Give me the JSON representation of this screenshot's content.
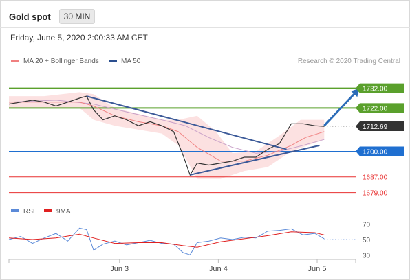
{
  "header": {
    "title": "Gold spot",
    "timeframe": "30 MIN",
    "timestamp": "Friday, June 5, 2020 2:00:33 AM CET"
  },
  "chart_data": [
    {
      "type": "line",
      "name": "price",
      "legend": [
        {
          "name": "MA 20 + Bollinger Bands",
          "color": "#f08080"
        },
        {
          "name": "MA 50",
          "color": "#2b4f8f"
        }
      ],
      "credit": "Research © 2020 Trading Central",
      "x_ticks": [
        "Jun 3",
        "Jun 4",
        "Jun 5"
      ],
      "ylim": [
        1674,
        1742
      ],
      "levels": [
        {
          "value": 1732.0,
          "label": "1732.00",
          "color": "#5aa02c",
          "kind": "resistance"
        },
        {
          "value": 1722.0,
          "label": "1722.00",
          "color": "#5aa02c",
          "kind": "resistance"
        },
        {
          "value": 1712.69,
          "label": "1712.69",
          "color": "#333333",
          "kind": "last"
        },
        {
          "value": 1700.0,
          "label": "1700.00",
          "color": "#1f6fd0",
          "kind": "support"
        },
        {
          "value": 1687.0,
          "label": "1687.00",
          "color": "#e83030",
          "kind": "support"
        },
        {
          "value": 1679.0,
          "label": "1679.00",
          "color": "#e83030",
          "kind": "support"
        }
      ],
      "price": [
        {
          "t": 0,
          "v": 1724
        },
        {
          "t": 5,
          "v": 1725
        },
        {
          "t": 10,
          "v": 1726
        },
        {
          "t": 15,
          "v": 1725
        },
        {
          "t": 20,
          "v": 1723
        },
        {
          "t": 25,
          "v": 1725
        },
        {
          "t": 30,
          "v": 1727
        },
        {
          "t": 33,
          "v": 1728
        },
        {
          "t": 36,
          "v": 1721
        },
        {
          "t": 40,
          "v": 1716
        },
        {
          "t": 45,
          "v": 1718
        },
        {
          "t": 50,
          "v": 1716
        },
        {
          "t": 55,
          "v": 1713
        },
        {
          "t": 60,
          "v": 1715
        },
        {
          "t": 65,
          "v": 1713
        },
        {
          "t": 70,
          "v": 1710
        },
        {
          "t": 74,
          "v": 1698
        },
        {
          "t": 77,
          "v": 1688
        },
        {
          "t": 80,
          "v": 1694
        },
        {
          "t": 85,
          "v": 1693
        },
        {
          "t": 90,
          "v": 1694
        },
        {
          "t": 95,
          "v": 1695
        },
        {
          "t": 100,
          "v": 1697
        },
        {
          "t": 105,
          "v": 1697
        },
        {
          "t": 110,
          "v": 1701
        },
        {
          "t": 115,
          "v": 1704
        },
        {
          "t": 120,
          "v": 1714
        },
        {
          "t": 125,
          "v": 1714
        },
        {
          "t": 130,
          "v": 1713
        },
        {
          "t": 134,
          "v": 1712.69
        }
      ],
      "ma20": [
        {
          "t": 0,
          "v": 1725
        },
        {
          "t": 10,
          "v": 1725
        },
        {
          "t": 20,
          "v": 1725
        },
        {
          "t": 30,
          "v": 1725
        },
        {
          "t": 36,
          "v": 1723
        },
        {
          "t": 45,
          "v": 1718
        },
        {
          "t": 55,
          "v": 1715
        },
        {
          "t": 65,
          "v": 1713
        },
        {
          "t": 72,
          "v": 1710
        },
        {
          "t": 80,
          "v": 1702
        },
        {
          "t": 90,
          "v": 1695
        },
        {
          "t": 100,
          "v": 1695
        },
        {
          "t": 110,
          "v": 1698
        },
        {
          "t": 120,
          "v": 1703
        },
        {
          "t": 126,
          "v": 1707
        },
        {
          "t": 134,
          "v": 1710
        }
      ],
      "bb_upper": [
        {
          "t": 0,
          "v": 1728
        },
        {
          "t": 15,
          "v": 1728
        },
        {
          "t": 30,
          "v": 1730
        },
        {
          "t": 36,
          "v": 1729
        },
        {
          "t": 45,
          "v": 1722
        },
        {
          "t": 55,
          "v": 1719
        },
        {
          "t": 65,
          "v": 1716
        },
        {
          "t": 72,
          "v": 1716
        },
        {
          "t": 80,
          "v": 1718
        },
        {
          "t": 88,
          "v": 1710
        },
        {
          "t": 95,
          "v": 1699
        },
        {
          "t": 105,
          "v": 1700
        },
        {
          "t": 115,
          "v": 1708
        },
        {
          "t": 124,
          "v": 1716
        },
        {
          "t": 134,
          "v": 1716
        }
      ],
      "bb_lower": [
        {
          "t": 0,
          "v": 1722
        },
        {
          "t": 15,
          "v": 1722
        },
        {
          "t": 30,
          "v": 1722
        },
        {
          "t": 36,
          "v": 1716
        },
        {
          "t": 45,
          "v": 1713
        },
        {
          "t": 55,
          "v": 1711
        },
        {
          "t": 65,
          "v": 1709
        },
        {
          "t": 72,
          "v": 1703
        },
        {
          "t": 80,
          "v": 1686
        },
        {
          "t": 90,
          "v": 1686
        },
        {
          "t": 100,
          "v": 1690
        },
        {
          "t": 110,
          "v": 1692
        },
        {
          "t": 120,
          "v": 1700
        },
        {
          "t": 134,
          "v": 1706
        }
      ],
      "ma50": [
        {
          "t": 0,
          "v": 1725
        },
        {
          "t": 20,
          "v": 1726
        },
        {
          "t": 36,
          "v": 1724
        },
        {
          "t": 50,
          "v": 1720
        },
        {
          "t": 65,
          "v": 1716
        },
        {
          "t": 75,
          "v": 1713
        },
        {
          "t": 85,
          "v": 1707
        },
        {
          "t": 95,
          "v": 1702
        },
        {
          "t": 105,
          "v": 1699
        },
        {
          "t": 115,
          "v": 1700
        },
        {
          "t": 125,
          "v": 1703
        },
        {
          "t": 134,
          "v": 1706
        }
      ],
      "trendlines": [
        {
          "name": "falling-resistance",
          "from": {
            "t": 33,
            "v": 1728
          },
          "to": {
            "t": 118,
            "v": 1701
          }
        },
        {
          "name": "rising-support",
          "from": {
            "t": 77,
            "v": 1688
          },
          "to": {
            "t": 132,
            "v": 1703
          }
        }
      ],
      "projection": {
        "from": {
          "t": 134,
          "v": 1713
        },
        "to": {
          "t": 149,
          "v": 1732
        }
      }
    },
    {
      "type": "line",
      "name": "rsi",
      "legend": [
        {
          "name": "RSI",
          "color": "#5b8ad8"
        },
        {
          "name": "9MA",
          "color": "#e02020"
        }
      ],
      "y_ticks": [
        "70",
        "50",
        "30"
      ],
      "ylim": [
        24,
        76
      ],
      "rsi": [
        {
          "t": 0,
          "v": 50
        },
        {
          "t": 5,
          "v": 54
        },
        {
          "t": 10,
          "v": 45
        },
        {
          "t": 15,
          "v": 52
        },
        {
          "t": 20,
          "v": 58
        },
        {
          "t": 25,
          "v": 48
        },
        {
          "t": 30,
          "v": 65
        },
        {
          "t": 33,
          "v": 63
        },
        {
          "t": 36,
          "v": 36
        },
        {
          "t": 40,
          "v": 44
        },
        {
          "t": 45,
          "v": 48
        },
        {
          "t": 50,
          "v": 43
        },
        {
          "t": 55,
          "v": 46
        },
        {
          "t": 60,
          "v": 49
        },
        {
          "t": 65,
          "v": 45
        },
        {
          "t": 70,
          "v": 44
        },
        {
          "t": 74,
          "v": 33
        },
        {
          "t": 77,
          "v": 30
        },
        {
          "t": 80,
          "v": 46
        },
        {
          "t": 85,
          "v": 48
        },
        {
          "t": 90,
          "v": 52
        },
        {
          "t": 95,
          "v": 50
        },
        {
          "t": 100,
          "v": 53
        },
        {
          "t": 105,
          "v": 52
        },
        {
          "t": 110,
          "v": 61
        },
        {
          "t": 115,
          "v": 62
        },
        {
          "t": 120,
          "v": 64
        },
        {
          "t": 125,
          "v": 56
        },
        {
          "t": 130,
          "v": 58
        },
        {
          "t": 134,
          "v": 51
        }
      ],
      "ma9": [
        {
          "t": 0,
          "v": 52
        },
        {
          "t": 10,
          "v": 50
        },
        {
          "t": 20,
          "v": 52
        },
        {
          "t": 30,
          "v": 57
        },
        {
          "t": 36,
          "v": 52
        },
        {
          "t": 45,
          "v": 45
        },
        {
          "t": 55,
          "v": 46
        },
        {
          "t": 65,
          "v": 46
        },
        {
          "t": 74,
          "v": 42
        },
        {
          "t": 80,
          "v": 40
        },
        {
          "t": 90,
          "v": 47
        },
        {
          "t": 100,
          "v": 51
        },
        {
          "t": 110,
          "v": 55
        },
        {
          "t": 120,
          "v": 60
        },
        {
          "t": 130,
          "v": 59
        },
        {
          "t": 134,
          "v": 56
        }
      ]
    }
  ]
}
